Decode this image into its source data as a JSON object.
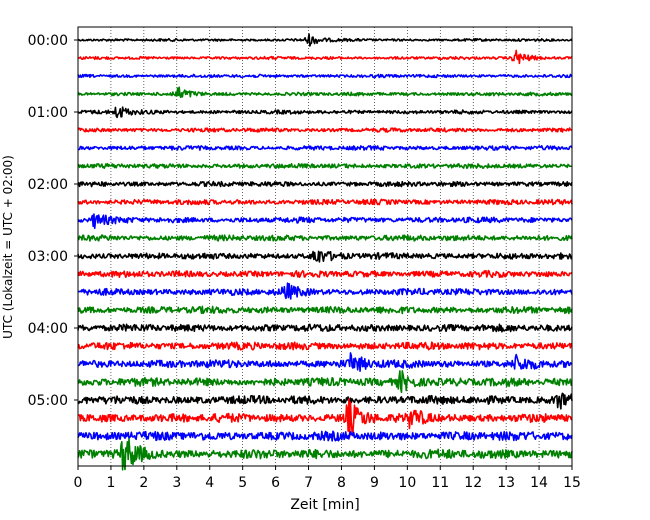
{
  "chart_data": {
    "type": "line",
    "title": "",
    "xlabel": "Zeit  [min]",
    "ylabel": "UTC (Lokalzeit = UTC + 02:00)",
    "xlim": [
      0,
      15
    ],
    "x_ticks": [
      "0",
      "1",
      "2",
      "3",
      "4",
      "5",
      "6",
      "7",
      "8",
      "9",
      "10",
      "11",
      "12",
      "13",
      "14",
      "15"
    ],
    "y_ticks": [
      "00:00",
      "01:00",
      "02:00",
      "03:00",
      "04:00",
      "05:00"
    ],
    "trace_minutes": 15,
    "trace_count": 24,
    "trace_colors": [
      "#000000",
      "#ff0000",
      "#0000ff",
      "#008000"
    ],
    "vertical_grid": "dotted",
    "legend": "none",
    "events": [
      {
        "trace": 0,
        "minute": 7.0,
        "amplitude": 0.35
      },
      {
        "trace": 1,
        "minute": 13.3,
        "amplitude": 0.45
      },
      {
        "trace": 3,
        "minute": 3.0,
        "amplitude": 0.4
      },
      {
        "trace": 4,
        "minute": 1.2,
        "amplitude": 0.4
      },
      {
        "trace": 10,
        "minute": 0.5,
        "amplitude": 0.4
      },
      {
        "trace": 12,
        "minute": 7.2,
        "amplitude": 0.45
      },
      {
        "trace": 14,
        "minute": 6.3,
        "amplitude": 0.45
      },
      {
        "trace": 18,
        "minute": 8.3,
        "amplitude": 0.55
      },
      {
        "trace": 18,
        "minute": 13.3,
        "amplitude": 0.4
      },
      {
        "trace": 19,
        "minute": 9.8,
        "amplitude": 0.6
      },
      {
        "trace": 20,
        "minute": 14.6,
        "amplitude": 0.5
      },
      {
        "trace": 21,
        "minute": 8.2,
        "amplitude": 1.05
      },
      {
        "trace": 21,
        "minute": 10.1,
        "amplitude": 0.5
      },
      {
        "trace": 23,
        "minute": 1.4,
        "amplitude": 1.1
      }
    ]
  }
}
